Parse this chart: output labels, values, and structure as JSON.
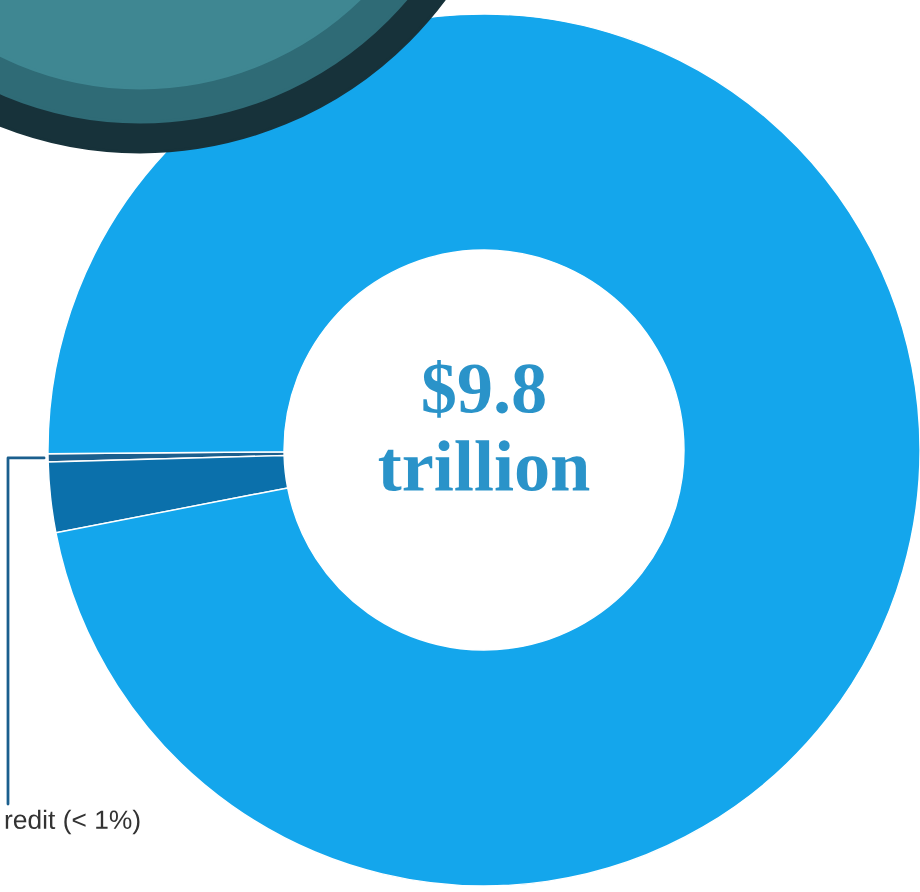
{
  "chart_data": {
    "type": "donut",
    "categories": [
      "redit (< 1%)",
      null,
      null
    ],
    "values": [
      0.3,
      2.6,
      97.1
    ],
    "colors": [
      "#1b5f8e",
      "#0b70ab",
      "#14a6ec"
    ],
    "annotations": [
      "$9.8\ntrillion"
    ]
  }
}
